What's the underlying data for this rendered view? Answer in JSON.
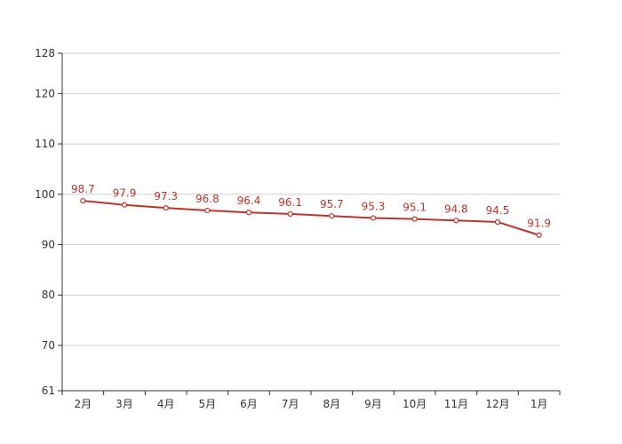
{
  "chart_data": {
    "type": "line",
    "title": "",
    "xlabel": "",
    "ylabel": "",
    "categories": [
      "2月",
      "3月",
      "4月",
      "5月",
      "6月",
      "7月",
      "8月",
      "9月",
      "10月",
      "11月",
      "12月",
      "1月"
    ],
    "series": [
      {
        "values": [
          98.7,
          97.9,
          97.3,
          96.8,
          96.4,
          96.1,
          95.7,
          95.3,
          95.1,
          94.8,
          94.5,
          91.9
        ],
        "color": "#c0332b"
      }
    ],
    "yticks": [
      61,
      70,
      80,
      90,
      100,
      110,
      120,
      128
    ],
    "ylim": [
      61,
      128
    ],
    "grid": true,
    "legend": "none",
    "data_labels": true
  }
}
